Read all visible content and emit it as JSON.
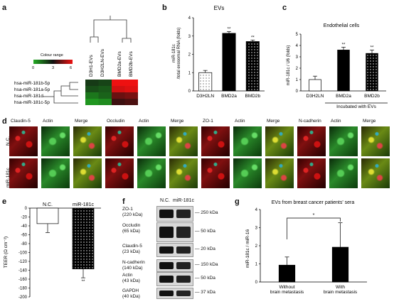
{
  "panel_labels": {
    "a": "a",
    "b": "b",
    "c": "c",
    "d": "d",
    "e": "e",
    "f": "f",
    "g": "g"
  },
  "heatmap": {
    "legend_title": "Colour range",
    "legend_min": "0",
    "legend_mid": "3",
    "legend_max": "6",
    "columns": [
      "D3H1-EVs",
      "D3H2LN-EVs",
      "BMD2a-EVs",
      "BMD2b-EVs"
    ],
    "rows": [
      "hsa-miR-181b-5p",
      "hsa-miR-181a-5p",
      "hsa-miR-181d",
      "hsa-miR-181c-5p"
    ],
    "colors": {
      "low": "#22aa22",
      "mid": "#111111",
      "high": "#ee1111"
    },
    "values": [
      [
        2.2,
        2.0,
        6,
        6
      ],
      [
        1.8,
        1.6,
        5.6,
        5.8
      ],
      [
        1.0,
        1.4,
        4.2,
        4.4
      ],
      [
        0.4,
        0.6,
        3.6,
        3.8
      ]
    ]
  },
  "panel_b": {
    "title": "EVs",
    "ylabel": "miR-181c /total exosomal RNA (folds)",
    "ylabel1": "miR-181c",
    "ylabel2": "/total exosomal RNA (folds)",
    "stars": [
      "",
      "**",
      "**"
    ],
    "chart_data": {
      "type": "bar",
      "categories": [
        "D3H2LN",
        "BMD2a",
        "BMD2b"
      ],
      "values": [
        1.0,
        3.15,
        2.7
      ],
      "errors": [
        0.12,
        0.1,
        0.08
      ],
      "ylim": [
        0,
        4
      ],
      "yticks": [
        "0",
        "1",
        "2",
        "3",
        "4"
      ],
      "title": "EVs",
      "ylabel": "miR-181c /total exosomal RNA (folds)"
    }
  },
  "panel_c": {
    "title": "Endothelial cells",
    "ylabel": "miR-181c / U6 (folds)",
    "footnote": "Incubated with EVs",
    "stars": [
      "",
      "**",
      "**"
    ],
    "chart_data": {
      "type": "bar",
      "categories": [
        "D3H2LN",
        "BMD2a",
        "BMD2b"
      ],
      "values": [
        1.0,
        3.6,
        3.3
      ],
      "errors": [
        0.3,
        0.25,
        0.3
      ],
      "ylim": [
        0,
        5
      ],
      "yticks": [
        "0",
        "1",
        "2",
        "3",
        "4",
        "5"
      ],
      "title": "Endothelial cells",
      "ylabel": "miR-181c / U6 (folds)"
    }
  },
  "panel_d": {
    "row_labels": [
      "N.C.",
      "miR-181c"
    ],
    "headers": [
      "Claudin-5",
      "Actin",
      "Merge",
      "Occludin",
      "Actin",
      "Merge",
      "ZO-1",
      "Actin",
      "Merge",
      "N-cadherin",
      "Actin",
      "Merge"
    ]
  },
  "panel_e": {
    "ylabel": "TEER (Ω cm⁻²)",
    "stars": "**",
    "chart_data": {
      "type": "bar",
      "categories": [
        "N.C.",
        "miR-181c"
      ],
      "values": [
        -35,
        -137
      ],
      "errors": [
        20,
        20
      ],
      "ylim": [
        -200,
        0
      ],
      "yticks": [
        "0",
        "-20",
        "-40",
        "-60",
        "-80",
        "-100",
        "-120",
        "-140",
        "-160",
        "-180",
        "-200"
      ],
      "ylabel": "TEER (Ω cm⁻²)"
    }
  },
  "panel_f": {
    "col_headers": [
      "N.C.",
      "miR-181c"
    ],
    "proteins": [
      {
        "name": "ZO-1",
        "size": "(220 kDa)"
      },
      {
        "name": "Occludin",
        "size": "(65 kDa)"
      },
      {
        "name": "Claudin-5",
        "size": "(23 kDa)"
      },
      {
        "name": "N-cadherin",
        "size": "(140 kDa)"
      },
      {
        "name": "Actin",
        "size": "(43 kDa)"
      },
      {
        "name": "GAPDH",
        "size": "(40 kDa)"
      }
    ],
    "markers": [
      "250 kDa",
      "50 kDa",
      "20 kDa",
      "150 kDa",
      "50 kDa",
      "37 kDa"
    ]
  },
  "panel_g": {
    "title": "EVs from breast cancer patients' sera",
    "ylabel": "miR-181c / miR-16",
    "significance": "*",
    "chart_data": {
      "type": "bar",
      "categories": [
        "Without brain metastasis",
        "With brain metastasis"
      ],
      "values": [
        0.93,
        1.92
      ],
      "errors": [
        0.45,
        1.35
      ],
      "ylim": [
        0,
        4
      ],
      "yticks": [
        "0",
        "1",
        "2",
        "3",
        "4"
      ],
      "ylabel": "miR-181c / miR-16",
      "title": "EVs from breast cancer patients' sera"
    },
    "xlabels": [
      [
        "Without",
        "brain metastasis"
      ],
      [
        "With",
        "brain metastasis"
      ]
    ]
  }
}
